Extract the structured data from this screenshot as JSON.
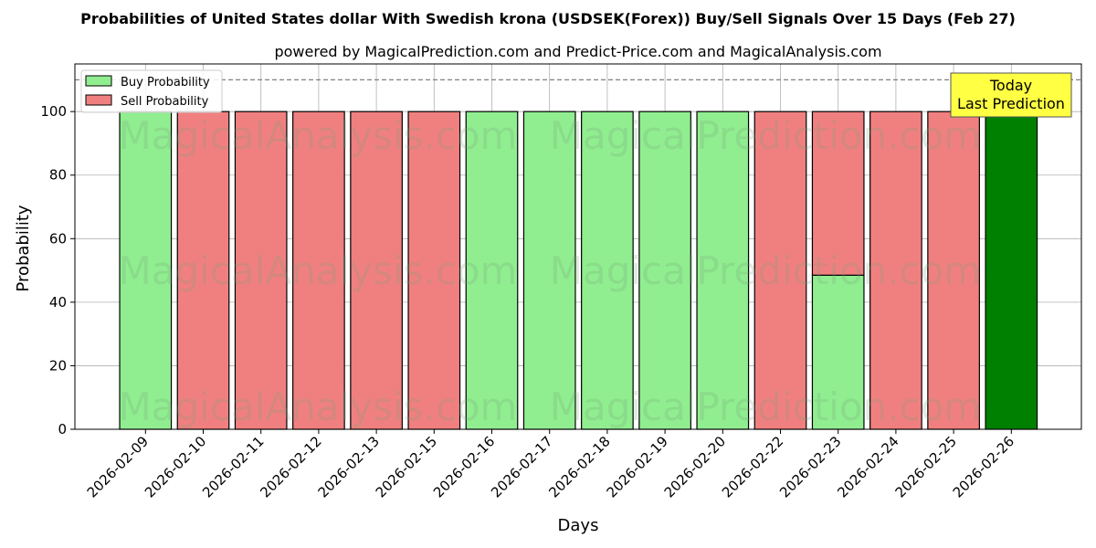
{
  "chart_data": {
    "type": "bar",
    "stacked": true,
    "title": "Probabilities of United States dollar With Swedish krona (USDSEK(Forex)) Buy/Sell Signals Over 15 Days (Feb 27)",
    "subtitle": "powered by MagicalPrediction.com and Predict-Price.com and MagicalAnalysis.com",
    "xlabel": "Days",
    "ylabel": "Probability",
    "ylim": [
      0,
      115
    ],
    "yticks": [
      0,
      20,
      40,
      60,
      80,
      100
    ],
    "grid": true,
    "legend_position": "top-left",
    "categories": [
      "2026-02-09",
      "2026-02-10",
      "2026-02-11",
      "2026-02-12",
      "2026-02-13",
      "2026-02-15",
      "2026-02-16",
      "2026-02-17",
      "2026-02-18",
      "2026-02-19",
      "2026-02-20",
      "2026-02-22",
      "2026-02-23",
      "2026-02-24",
      "2026-02-25",
      "2026-02-26"
    ],
    "series": [
      {
        "name": "Buy Probability",
        "color": "#90ee90",
        "values": [
          100,
          0,
          0,
          0,
          0,
          0,
          100,
          100,
          100,
          100,
          100,
          0,
          48.5,
          0,
          0,
          100
        ]
      },
      {
        "name": "Sell Probability",
        "color": "#f08080",
        "values": [
          0,
          100,
          100,
          100,
          100,
          100,
          0,
          0,
          0,
          0,
          0,
          100,
          51.5,
          100,
          100,
          0
        ]
      }
    ],
    "highlight": {
      "category": "2026-02-26",
      "color": "#008000"
    },
    "reference_line": {
      "y": 110,
      "style": "dashed",
      "color": "#808080"
    },
    "annotation": {
      "lines": [
        "Today",
        "Last Prediction"
      ],
      "background": "#ffff44"
    },
    "watermarks": [
      "MagicalAnalysis.com",
      "MagicalPrediction.com"
    ]
  }
}
